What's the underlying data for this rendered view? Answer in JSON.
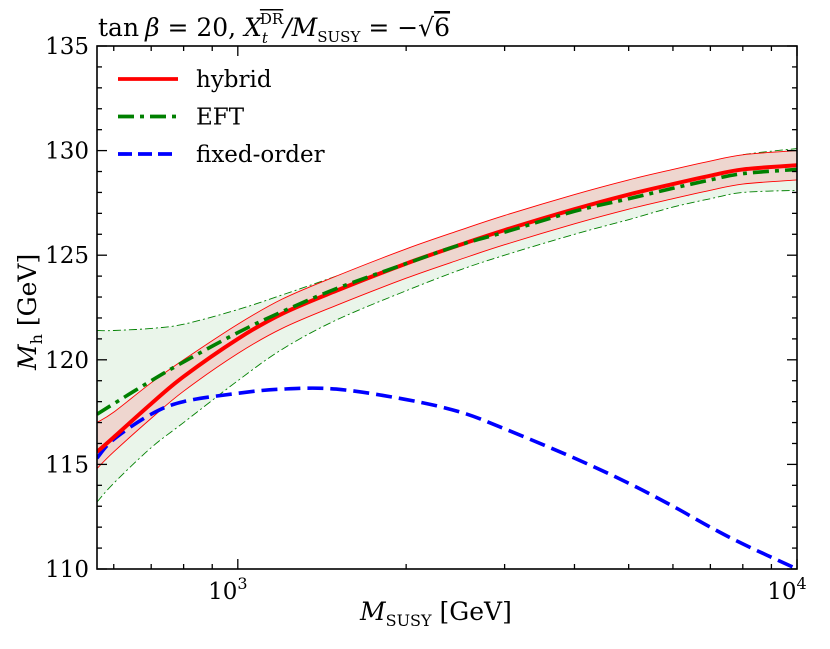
{
  "chart_data": {
    "type": "line",
    "title": "tan β = 20, X_t^DR / M_SUSY = −√6",
    "title_parts": {
      "prefix": "tan",
      "beta": "β",
      "eq_value": " = 20, ",
      "X": "X",
      "t_sub": "t",
      "dr_sup": "DR",
      "slash": "/M",
      "susy_sub": "SUSY",
      "equals_minus": " = −",
      "sqrt": "√",
      "six": "6"
    },
    "xlabel_parts": {
      "M": "M",
      "sub": "SUSY",
      "unit": " [GeV]"
    },
    "ylabel_parts": {
      "M": "M",
      "sub": "h",
      "unit": " [GeV]"
    },
    "xscale": "log",
    "xlim": [
      560,
      10000
    ],
    "ylim": [
      110,
      135
    ],
    "x_ticks": [
      {
        "value": 1000,
        "base": "10",
        "exp": "3"
      },
      {
        "value": 10000,
        "base": "10",
        "exp": "4"
      }
    ],
    "y_ticks": [
      110,
      115,
      120,
      125,
      130,
      135
    ],
    "legend_position": "top-left",
    "x": [
      560,
      600,
      700,
      800,
      1000,
      1200,
      1500,
      2000,
      2500,
      3000,
      4000,
      5000,
      6000,
      7000,
      8000,
      10000
    ],
    "series": [
      {
        "name": "hybrid",
        "color": "#ff0000",
        "style": "solid",
        "values": [
          115.6,
          116.3,
          117.9,
          119.2,
          121.0,
          122.2,
          123.3,
          124.6,
          125.5,
          126.2,
          127.2,
          127.9,
          128.4,
          128.8,
          129.1,
          129.3
        ]
      },
      {
        "name": "EFT",
        "color": "#008000",
        "style": "dashdot",
        "values": [
          117.4,
          117.9,
          119.0,
          119.9,
          121.3,
          122.3,
          123.4,
          124.6,
          125.5,
          126.1,
          127.1,
          127.7,
          128.2,
          128.6,
          128.9,
          129.1
        ]
      },
      {
        "name": "fixed-order",
        "color": "#0000ff",
        "style": "dashed",
        "values": [
          115.3,
          116.2,
          117.4,
          118.0,
          118.4,
          118.6,
          118.6,
          118.1,
          117.5,
          116.7,
          115.3,
          114.1,
          113.0,
          112.0,
          111.2,
          110.0
        ]
      }
    ],
    "bands": [
      {
        "name": "EFT uncertainty band",
        "color": "#008000",
        "fill": "#eaf5ea",
        "lower": [
          113.2,
          114.1,
          115.8,
          117.0,
          119.0,
          120.5,
          121.9,
          123.3,
          124.3,
          125.0,
          126.0,
          126.7,
          127.3,
          127.7,
          128.0,
          128.1
        ],
        "upper": [
          121.4,
          121.4,
          121.5,
          121.7,
          122.4,
          123.1,
          124.0,
          125.2,
          126.1,
          126.8,
          127.8,
          128.5,
          129.0,
          129.4,
          129.8,
          130.1
        ]
      },
      {
        "name": "hybrid uncertainty band",
        "color": "#ff0000",
        "fill": "#eed6cf",
        "lower": [
          114.8,
          115.6,
          117.2,
          118.5,
          120.3,
          121.5,
          122.6,
          123.9,
          124.8,
          125.5,
          126.5,
          127.2,
          127.7,
          128.1,
          128.4,
          128.6
        ],
        "upper": [
          117.0,
          117.5,
          118.9,
          120.0,
          121.7,
          122.9,
          124.0,
          125.3,
          126.2,
          126.9,
          127.9,
          128.6,
          129.1,
          129.5,
          129.8,
          130.0
        ]
      }
    ]
  }
}
